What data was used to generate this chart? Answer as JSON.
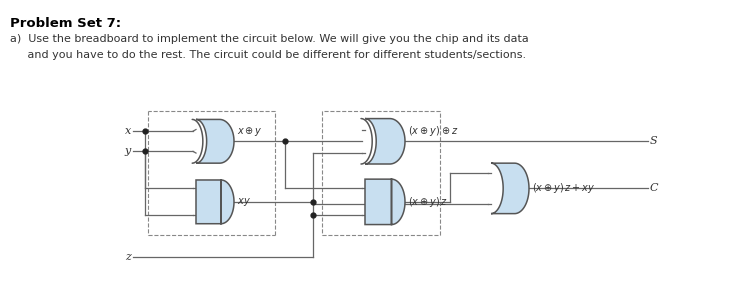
{
  "title": "Problem Set 7:",
  "line1": "a)  Use the breadboard to implement the circuit below. We will give you the chip and its data",
  "line2": "     and you have to do the rest. The circuit could be different for different students/sections.",
  "gate_fill": "#c8dff0",
  "gate_edge": "#555555",
  "wire_color": "#666666",
  "dot_color": "#222222",
  "dash_color": "#888888",
  "text_color": "#333333",
  "title_color": "#000000",
  "bg_color": "#ffffff",
  "label_s": "S",
  "label_c": "C",
  "label_x": "x",
  "label_y": "y",
  "label_z": "z"
}
